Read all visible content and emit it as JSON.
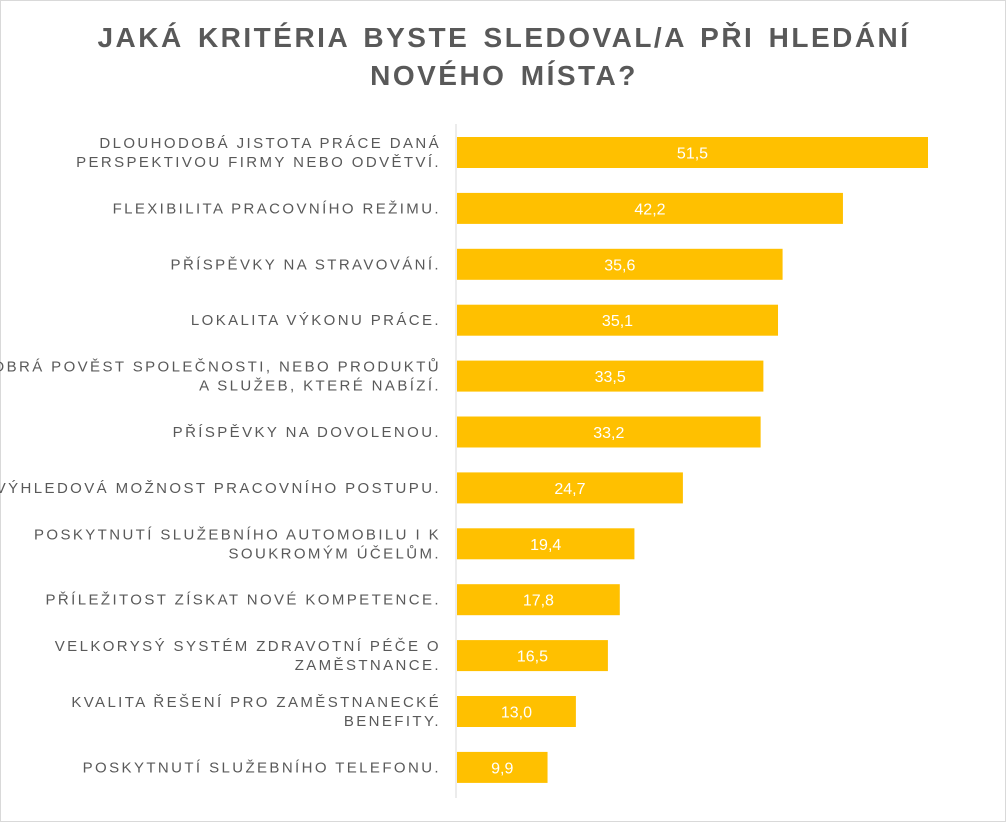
{
  "chart_data": {
    "type": "bar",
    "orientation": "horizontal",
    "title": "JAKÁ KRITÉRIA BYSTE SLEDOVAL/A PŘI HLEDÁNÍ NOVÉHO MÍSTA?",
    "title_lines": [
      "JAKÁ KRITÉRIA BYSTE SLEDOVAL/A PŘI HLEDÁNÍ",
      "NOVÉHO MÍSTA?"
    ],
    "categories": [
      "DLOUHODOBÁ JISTOTA PRÁCE DANÁ PERSPEKTIVOU FIRMY NEBO ODVĚTVÍ.",
      "FLEXIBILITA PRACOVNÍHO REŽIMU.",
      "PŘÍSPĚVKY NA STRAVOVÁNÍ.",
      "LOKALITA VÝKONU PRÁCE.",
      "DOBRÁ POVĚST SPOLEČNOSTI, NEBO PRODUKTŮ A SLUŽEB, KTERÉ NABÍZÍ.",
      "PŘÍSPĚVKY NA DOVOLENOU.",
      "VÝHLEDOVÁ MOŽNOST PRACOVNÍHO POSTUPU.",
      "POSKYTNUTÍ SLUŽEBNÍHO AUTOMOBILU I K SOUKROMÝM ÚČELŮM.",
      "PŘÍLEŽITOST ZÍSKAT NOVÉ KOMPETENCE.",
      "VELKORYSÝ SYSTÉM ZDRAVOTNÍ PÉČE O ZAMĚSTNANCE.",
      "KVALITA ŘEŠENÍ PRO ZAMĚSTNANECKÉ BENEFITY.",
      "POSKYTNUTÍ SLUŽEBNÍHO TELEFONU."
    ],
    "category_lines": [
      [
        "DLOUHODOBÁ JISTOTA PRÁCE DANÁ",
        "PERSPEKTIVOU FIRMY NEBO ODVĚTVÍ."
      ],
      [
        "FLEXIBILITA PRACOVNÍHO REŽIMU."
      ],
      [
        "PŘÍSPĚVKY NA STRAVOVÁNÍ."
      ],
      [
        "LOKALITA VÝKONU PRÁCE."
      ],
      [
        "DOBRÁ POVĚST SPOLEČNOSTI, NEBO PRODUKTŮ",
        "A SLUŽEB, KTERÉ NABÍZÍ."
      ],
      [
        "PŘÍSPĚVKY NA DOVOLENOU."
      ],
      [
        "VÝHLEDOVÁ MOŽNOST PRACOVNÍHO POSTUPU."
      ],
      [
        "POSKYTNUTÍ SLUŽEBNÍHO AUTOMOBILU I K",
        "SOUKROMÝM ÚČELŮM."
      ],
      [
        "PŘÍLEŽITOST ZÍSKAT NOVÉ KOMPETENCE."
      ],
      [
        "VELKORYSÝ SYSTÉM ZDRAVOTNÍ PÉČE O",
        "ZAMĚSTNANCE."
      ],
      [
        "KVALITA ŘEŠENÍ PRO ZAMĚSTNANECKÉ",
        "BENEFITY."
      ],
      [
        "POSKYTNUTÍ SLUŽEBNÍHO TELEFONU."
      ]
    ],
    "values": [
      51.5,
      42.2,
      35.6,
      35.1,
      33.5,
      33.2,
      24.7,
      19.4,
      17.8,
      16.5,
      13.0,
      9.9
    ],
    "value_labels": [
      "51,5",
      "42,2",
      "35,6",
      "35,1",
      "33,5",
      "33,2",
      "24,7",
      "19,4",
      "17,8",
      "16,5",
      "13,0",
      "9,9"
    ],
    "xlim": [
      0,
      60
    ],
    "grid": false,
    "legend": "none",
    "bar_color": "#FFC000",
    "label_color": "#595959",
    "value_label_color": "#FFFFFF"
  }
}
